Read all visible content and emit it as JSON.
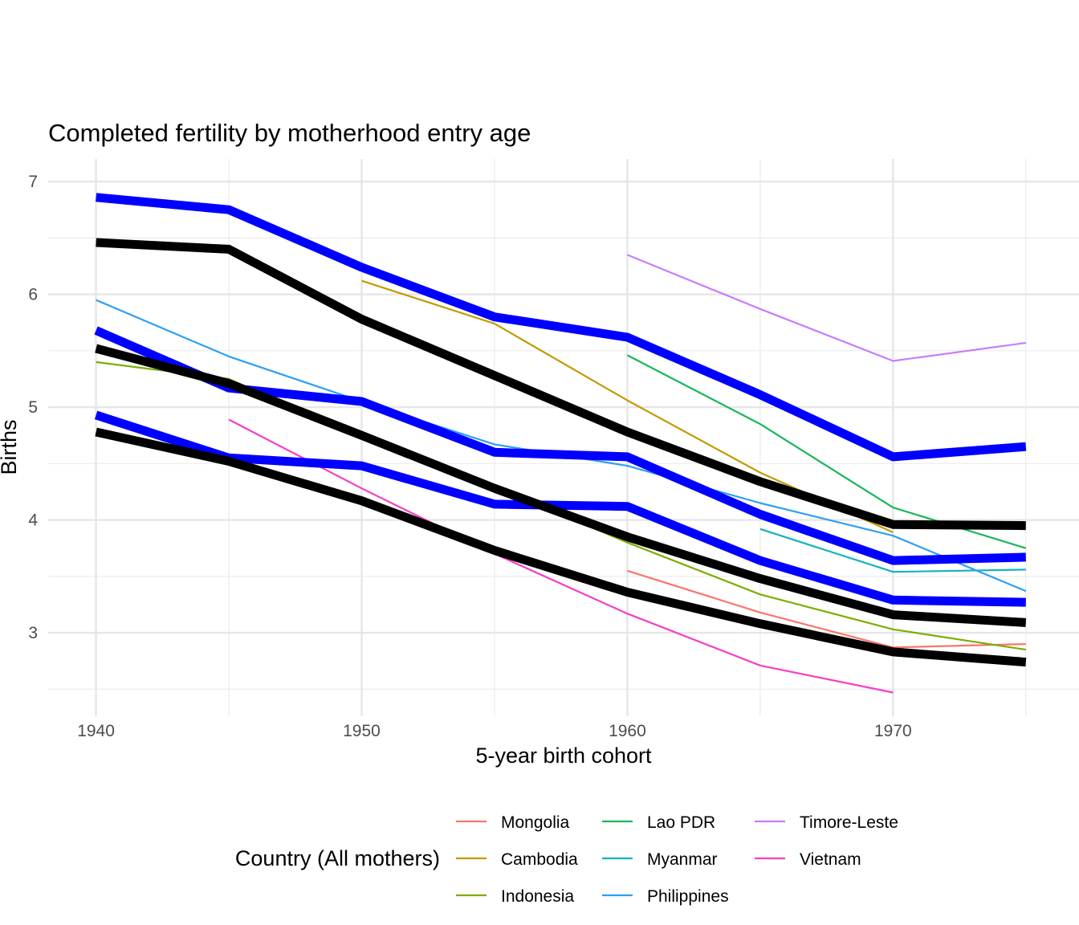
{
  "chart_data": {
    "type": "line",
    "title": "Completed fertility by motherhood entry age",
    "xlabel": "5-year birth cohort",
    "ylabel": "Births",
    "xlim": [
      1938.2,
      1977.0
    ],
    "ylim": [
      2.26,
      7.2
    ],
    "x_ticks": [
      1940,
      1950,
      1960,
      1970
    ],
    "y_ticks": [
      3,
      4,
      5,
      6,
      7
    ],
    "grid": true,
    "legend": {
      "title": "Country (All mothers)",
      "position": "bottom",
      "entries": [
        {
          "name": "Mongolia",
          "color": "#F8766D"
        },
        {
          "name": "Cambodia",
          "color": "#C49A00"
        },
        {
          "name": "Indonesia",
          "color": "#7CAE00"
        },
        {
          "name": "Lao PDR",
          "color": "#1BB55B"
        },
        {
          "name": "Myanmar",
          "color": "#12B4C0"
        },
        {
          "name": "Philippines",
          "color": "#2E9FF4"
        },
        {
          "name": "Timore-Leste",
          "color": "#C77CFF"
        },
        {
          "name": "Vietnam",
          "color": "#F53FC6"
        }
      ]
    },
    "series": [
      {
        "name": "Mongolia",
        "color": "#F8766D",
        "x": [
          1960,
          1965,
          1970,
          1975
        ],
        "values": [
          3.55,
          3.18,
          2.87,
          2.9
        ]
      },
      {
        "name": "Cambodia",
        "color": "#C49A00",
        "x": [
          1950,
          1955,
          1960,
          1965,
          1970
        ],
        "values": [
          6.12,
          5.74,
          5.06,
          4.42,
          3.89
        ]
      },
      {
        "name": "Indonesia",
        "color": "#7CAE00",
        "x": [
          1940,
          1945,
          1950,
          1955,
          1960,
          1965,
          1970,
          1975
        ],
        "values": [
          5.4,
          5.25,
          4.72,
          4.3,
          3.8,
          3.34,
          3.03,
          2.85
        ]
      },
      {
        "name": "Lao PDR",
        "color": "#1BB55B",
        "x": [
          1960,
          1965,
          1970,
          1975
        ],
        "values": [
          5.46,
          4.85,
          4.11,
          3.75
        ]
      },
      {
        "name": "Myanmar",
        "color": "#12B4C0",
        "x": [
          1965,
          1970,
          1975
        ],
        "values": [
          3.92,
          3.54,
          3.56
        ]
      },
      {
        "name": "Philippines",
        "color": "#2E9FF4",
        "x": [
          1940,
          1945,
          1950,
          1955,
          1960,
          1965,
          1970,
          1975
        ],
        "values": [
          5.95,
          5.45,
          5.05,
          4.67,
          4.48,
          4.15,
          3.86,
          3.37
        ]
      },
      {
        "name": "Timore-Leste",
        "color": "#C77CFF",
        "x": [
          1960,
          1965,
          1970,
          1975
        ],
        "values": [
          6.35,
          5.87,
          5.41,
          5.57
        ]
      },
      {
        "name": "Vietnam",
        "color": "#F53FC6",
        "x": [
          1945,
          1950,
          1955,
          1960,
          1965,
          1970
        ],
        "values": [
          4.89,
          4.28,
          3.7,
          3.17,
          2.71,
          2.47
        ]
      },
      {
        "name": "",
        "color": "#0000FF",
        "x": [
          1940,
          1945,
          1950,
          1955,
          1960,
          1965,
          1970,
          1975
        ],
        "values": [
          6.86,
          6.75,
          6.24,
          5.8,
          5.62,
          5.11,
          4.56,
          4.65
        ]
      },
      {
        "name": "",
        "color": "#0000FF",
        "x": [
          1940,
          1945,
          1950,
          1955,
          1960,
          1965,
          1970,
          1975
        ],
        "values": [
          5.68,
          5.17,
          5.05,
          4.6,
          4.56,
          4.05,
          3.64,
          3.67
        ]
      },
      {
        "name": "",
        "color": "#0000FF",
        "x": [
          1940,
          1945,
          1950,
          1955,
          1960,
          1965,
          1970,
          1975
        ],
        "values": [
          4.93,
          4.55,
          4.48,
          4.14,
          4.12,
          3.64,
          3.29,
          3.27
        ]
      },
      {
        "name": "",
        "color": "#000000",
        "x": [
          1940,
          1945,
          1950,
          1955,
          1960,
          1965,
          1970,
          1975
        ],
        "values": [
          6.46,
          6.4,
          5.78,
          5.28,
          4.78,
          4.34,
          3.96,
          3.95
        ]
      },
      {
        "name": "",
        "color": "#000000",
        "x": [
          1940,
          1945,
          1950,
          1955,
          1960,
          1965,
          1970,
          1975
        ],
        "values": [
          5.52,
          5.21,
          4.75,
          4.28,
          3.85,
          3.48,
          3.16,
          3.09
        ]
      },
      {
        "name": "",
        "color": "#000000",
        "x": [
          1940,
          1945,
          1950,
          1955,
          1960,
          1965,
          1970,
          1975
        ],
        "values": [
          4.78,
          4.52,
          4.17,
          3.73,
          3.36,
          3.08,
          2.83,
          2.74
        ]
      }
    ]
  }
}
